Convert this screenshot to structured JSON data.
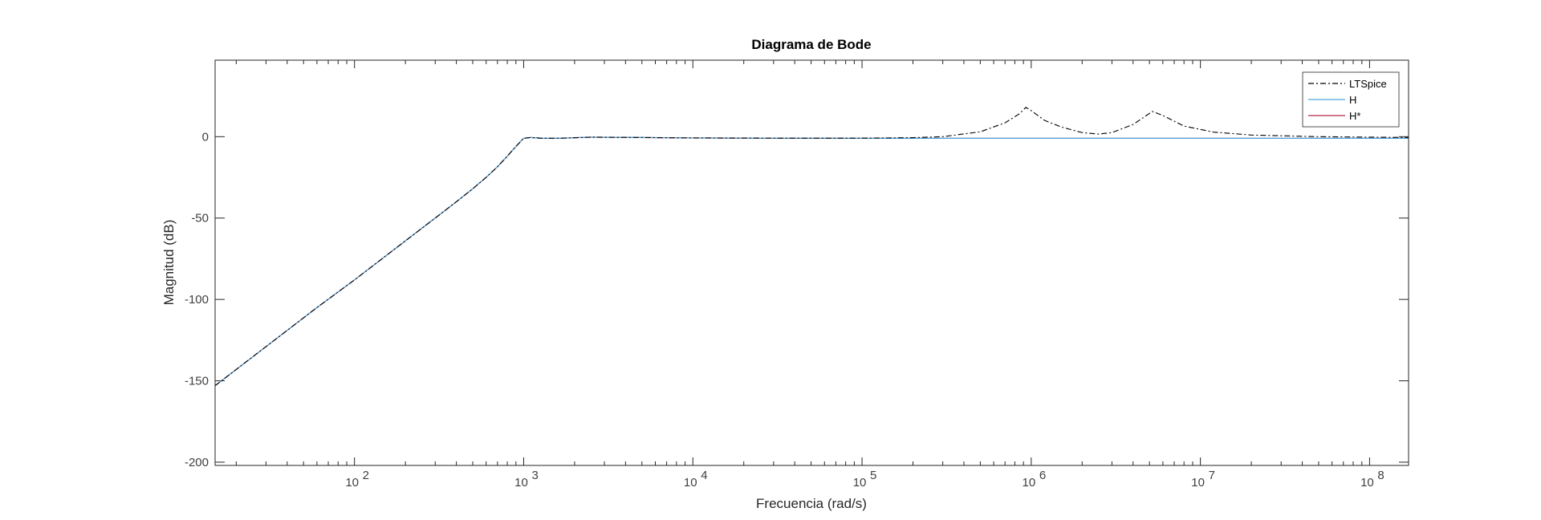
{
  "chart_data": {
    "type": "line",
    "title": "Diagrama de Bode",
    "xlabel": "Frecuencia  (rad/s)",
    "ylabel": "Magnitud (dB)",
    "xscale": "log",
    "xlim": [
      15,
      170000000
    ],
    "ylim": [
      -202,
      47
    ],
    "x_tick_base": "10",
    "x_tick_exponents": [
      "2",
      "3",
      "4",
      "5",
      "6",
      "7",
      "8"
    ],
    "y_ticks": [
      0,
      -50,
      -100,
      -150,
      -200
    ],
    "y_tick_labels": [
      "0",
      "-50",
      "-100",
      "-150",
      "-200"
    ],
    "grid": false,
    "legend_position": "top-right",
    "series": [
      {
        "name": "LTSpice",
        "color": "#000000",
        "style": "dash-dot",
        "x": [
          15,
          30,
          60,
          100,
          200,
          300,
          400,
          500,
          600,
          700,
          800,
          900,
          1000,
          1100,
          1300,
          1600,
          2500,
          5000,
          10000,
          30000,
          100000,
          200000,
          300000,
          500000,
          700000,
          850000,
          930000,
          1000000,
          1200000,
          1500000,
          2000000,
          2500000,
          3000000,
          4000000,
          5200000,
          6000000,
          8000000,
          12000000,
          20000000,
          50000000,
          100000000,
          170000000
        ],
        "y": [
          -153,
          -129,
          -105,
          -88,
          -64,
          -50,
          -40,
          -32,
          -25,
          -18.5,
          -12,
          -6,
          -1,
          -0.5,
          -1,
          -1,
          -0.3,
          -0.5,
          -0.8,
          -0.9,
          -0.9,
          -0.6,
          0,
          3,
          8.5,
          14,
          18,
          16,
          10,
          6,
          2.5,
          1.6,
          2.5,
          7.5,
          15.5,
          13,
          6.5,
          2.8,
          1,
          0,
          -0.3,
          -0.5
        ]
      },
      {
        "name": "H",
        "color": "#4aa8dc",
        "style": "solid",
        "x": [
          15,
          30,
          60,
          100,
          200,
          300,
          400,
          500,
          600,
          700,
          800,
          900,
          1000,
          1100,
          1300,
          1600,
          2500,
          5000,
          10000,
          100000,
          1000000,
          10000000,
          170000000
        ],
        "y": [
          -153,
          -129,
          -105,
          -88,
          -64,
          -50,
          -40,
          -32,
          -25,
          -18.5,
          -12,
          -6,
          -1,
          -0.5,
          -1,
          -1,
          -0.3,
          -0.5,
          -0.8,
          -1,
          -1,
          -1,
          -1
        ]
      },
      {
        "name": "H*",
        "color": "#b8284a",
        "style": "solid",
        "x": [
          15,
          30,
          60,
          100,
          200,
          300,
          400,
          500,
          600,
          700,
          800,
          900,
          1000,
          1100,
          1300,
          1600,
          2500,
          5000,
          10000,
          100000,
          1000000,
          10000000,
          170000000
        ],
        "y": [
          -153,
          -129,
          -105,
          -88,
          -64,
          -50,
          -40,
          -32,
          -25,
          -18.5,
          -12,
          -6,
          -1,
          -0.5,
          -1,
          -1,
          -0.3,
          -0.5,
          -0.8,
          -1,
          -1,
          -1,
          -1
        ]
      }
    ]
  }
}
